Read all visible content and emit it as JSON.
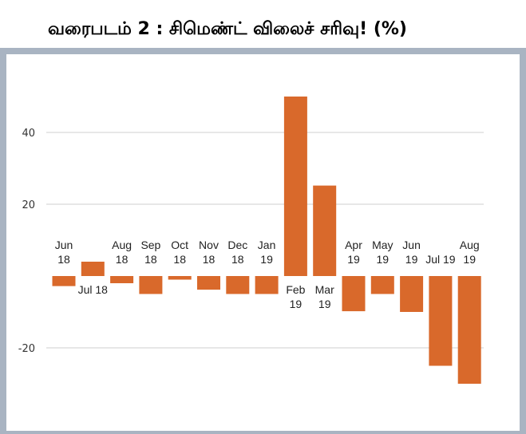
{
  "title": "வரைபடம் 2 : சிமெண்ட் விலைச் சரிவு! (%)",
  "chart_data": {
    "type": "bar",
    "title": "வரைபடம் 2 : சிமெண்ட் விலைச் சரிவு! (%)",
    "xlabel": "",
    "ylabel": "",
    "ylim": [
      -30,
      50
    ],
    "yticks": [
      40,
      20,
      -20
    ],
    "grid": true,
    "legend": "none",
    "colors": {
      "bar": "#d9692b",
      "frame": "#a9b4c2",
      "grid": "#cfcfcf"
    },
    "categories": [
      [
        "Jun",
        "18"
      ],
      [
        "Jul 18"
      ],
      [
        "Aug",
        "18"
      ],
      [
        "Sep",
        "18"
      ],
      [
        "Oct",
        "18"
      ],
      [
        "Nov",
        "18"
      ],
      [
        "Dec",
        "18"
      ],
      [
        "Jan",
        "19"
      ],
      [
        "Feb",
        "19"
      ],
      [
        "Mar",
        "19"
      ],
      [
        "Apr",
        "19"
      ],
      [
        "May",
        "19"
      ],
      [
        "Jun",
        "19"
      ],
      [
        "Jul 19"
      ],
      [
        "Aug",
        "19"
      ]
    ],
    "values": [
      -2.8,
      4.0,
      -2.0,
      -5.0,
      -1.0,
      -3.8,
      -5.0,
      -5.0,
      50.0,
      25.2,
      -9.8,
      -5.0,
      -10.0,
      -25.0,
      -30.0
    ]
  }
}
